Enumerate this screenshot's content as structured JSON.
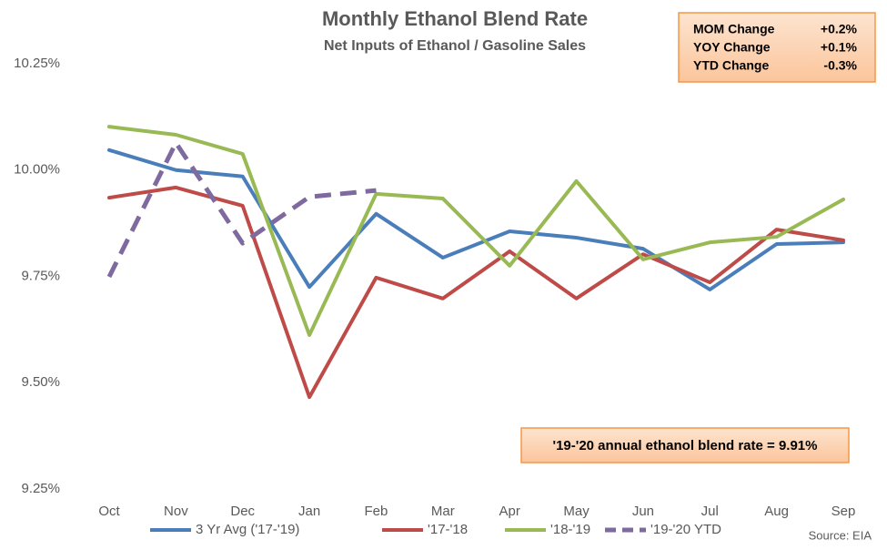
{
  "chart_data": {
    "type": "line",
    "title": "Monthly Ethanol Blend Rate",
    "subtitle": "Net Inputs of Ethanol / Gasoline Sales",
    "categories": [
      "Oct",
      "Nov",
      "Dec",
      "Jan",
      "Feb",
      "Mar",
      "Apr",
      "May",
      "Jun",
      "Jul",
      "Aug",
      "Sep"
    ],
    "series": [
      {
        "name": "3 Yr Avg ('17-'19)",
        "color": "#4a7ebb",
        "dashed": false,
        "values": [
          10.047,
          10.0,
          9.985,
          9.725,
          9.897,
          9.794,
          9.856,
          9.841,
          9.815,
          9.719,
          9.826,
          9.83
        ]
      },
      {
        "name": "'17-'18",
        "color": "#be4b48",
        "dashed": false,
        "values": [
          9.935,
          9.959,
          9.916,
          9.466,
          9.747,
          9.698,
          9.809,
          9.698,
          9.802,
          9.736,
          9.86,
          9.835
        ]
      },
      {
        "name": "'18-'19",
        "color": "#98b954",
        "dashed": false,
        "values": [
          10.102,
          10.083,
          10.038,
          9.612,
          9.944,
          9.933,
          9.775,
          9.974,
          9.79,
          9.83,
          9.843,
          9.931
        ]
      },
      {
        "name": "'19-'20 YTD",
        "color": "#7f6aa0",
        "dashed": true,
        "values": [
          9.749,
          10.064,
          9.828,
          9.937,
          9.952,
          null,
          null,
          null,
          null,
          null,
          null,
          null
        ]
      }
    ],
    "ylim": [
      9.25,
      10.25
    ],
    "yticks": [
      {
        "value": 9.25,
        "label": "9.25%"
      },
      {
        "value": 9.5,
        "label": "9.50%"
      },
      {
        "value": 9.75,
        "label": "9.75%"
      },
      {
        "value": 10.0,
        "label": "10.00%"
      },
      {
        "value": 10.25,
        "label": "10.25%"
      }
    ],
    "grid": false,
    "legend": "bottom",
    "info_box": [
      {
        "label": "MOM Change",
        "value": "+0.2%"
      },
      {
        "label": "YOY Change",
        "value": "+0.1%"
      },
      {
        "label": "YTD Change",
        "value": "-0.3%"
      }
    ],
    "annotation": "'19-'20 annual ethanol blend rate = 9.91%",
    "source": "Source: EIA"
  }
}
